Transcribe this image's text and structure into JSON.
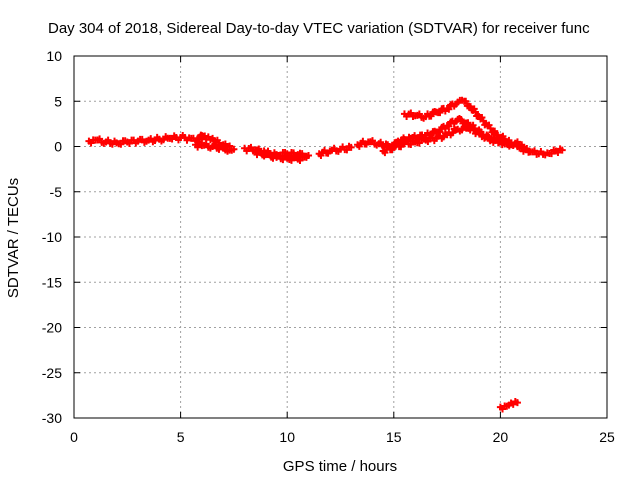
{
  "chart_data": {
    "type": "scatter",
    "title": "Day 304 of 2018, Sidereal Day-to-day VTEC variation (SDTVAR) for receiver func",
    "xlabel": "GPS time / hours",
    "ylabel": "SDTVAR / TECUs",
    "xlim": [
      0,
      25
    ],
    "ylim": [
      -30,
      10
    ],
    "xticks": [
      0,
      5,
      10,
      15,
      20,
      25
    ],
    "yticks": [
      -30,
      -25,
      -20,
      -15,
      -10,
      -5,
      0,
      5,
      10
    ],
    "grid": true,
    "marker_color": "#ff0000",
    "series": [
      {
        "name": "SDTVAR",
        "segments": [
          {
            "x": [
              0.7,
              1.0,
              1.5,
              2.0,
              2.5,
              3.0,
              3.5,
              4.0,
              4.5,
              5.0,
              5.5,
              6.0
            ],
            "y": [
              0.6,
              0.7,
              0.5,
              0.4,
              0.5,
              0.6,
              0.7,
              0.8,
              0.9,
              1.0,
              0.9,
              0.8
            ]
          },
          {
            "x": [
              5.8,
              6.0,
              6.2,
              6.5,
              6.8,
              7.0,
              7.2,
              7.5
            ],
            "y": [
              0.5,
              1.2,
              0.8,
              0.9,
              0.4,
              0.2,
              0.0,
              -0.3
            ]
          },
          {
            "x": [
              5.7,
              6.0,
              6.5,
              7.0,
              7.3
            ],
            "y": [
              0.2,
              0.1,
              0.0,
              -0.2,
              -0.4
            ]
          },
          {
            "x": [
              8.0,
              8.5,
              9.0,
              9.5,
              10.0,
              10.5,
              11.0
            ],
            "y": [
              -0.2,
              -0.4,
              -0.7,
              -0.9,
              -0.8,
              -0.9,
              -1.0
            ]
          },
          {
            "x": [
              8.5,
              9.0,
              9.5,
              10.0,
              10.5,
              10.9
            ],
            "y": [
              -0.6,
              -0.9,
              -1.2,
              -1.3,
              -1.4,
              -1.2
            ]
          },
          {
            "x": [
              11.5,
              12.0,
              12.5,
              13.0
            ],
            "y": [
              -0.8,
              -0.5,
              -0.3,
              -0.1
            ]
          },
          {
            "x": [
              13.3,
              13.8,
              14.3,
              14.8,
              15.2,
              15.6
            ],
            "y": [
              0.2,
              0.5,
              0.3,
              0.0,
              0.4,
              0.7
            ]
          },
          {
            "x": [
              14.5,
              15.0,
              15.5,
              16.0,
              16.5,
              17.0,
              17.5,
              18.0,
              18.5,
              19.0,
              19.5,
              20.0,
              20.5,
              21.0
            ],
            "y": [
              -0.5,
              -0.1,
              0.3,
              0.5,
              0.7,
              0.9,
              1.3,
              1.9,
              2.0,
              1.5,
              0.8,
              0.5,
              0.2,
              0.0
            ]
          },
          {
            "x": [
              15.2,
              15.8,
              16.5,
              17.0,
              17.5,
              18.0,
              18.4,
              18.8,
              19.2,
              19.6,
              20.0,
              20.5,
              21.0
            ],
            "y": [
              0.6,
              0.9,
              1.2,
              1.6,
              2.3,
              3.0,
              2.6,
              2.0,
              1.2,
              0.8,
              0.6,
              0.4,
              0.2
            ]
          },
          {
            "x": [
              15.5,
              16.0,
              16.5,
              17.0,
              17.5,
              18.0,
              18.3,
              18.6,
              19.0,
              19.4,
              19.8,
              20.2
            ],
            "y": [
              3.6,
              3.4,
              3.3,
              3.8,
              4.2,
              4.9,
              5.0,
              4.4,
              3.3,
              2.3,
              1.3,
              0.8
            ]
          },
          {
            "x": [
              21.0,
              21.4,
              21.8,
              22.2,
              22.6,
              22.9
            ],
            "y": [
              -0.2,
              -0.6,
              -0.8,
              -0.7,
              -0.5,
              -0.4
            ]
          },
          {
            "x": [
              20.0,
              20.3,
              20.6,
              20.8
            ],
            "y": [
              -28.8,
              -28.7,
              -28.5,
              -28.3
            ]
          }
        ]
      }
    ]
  }
}
